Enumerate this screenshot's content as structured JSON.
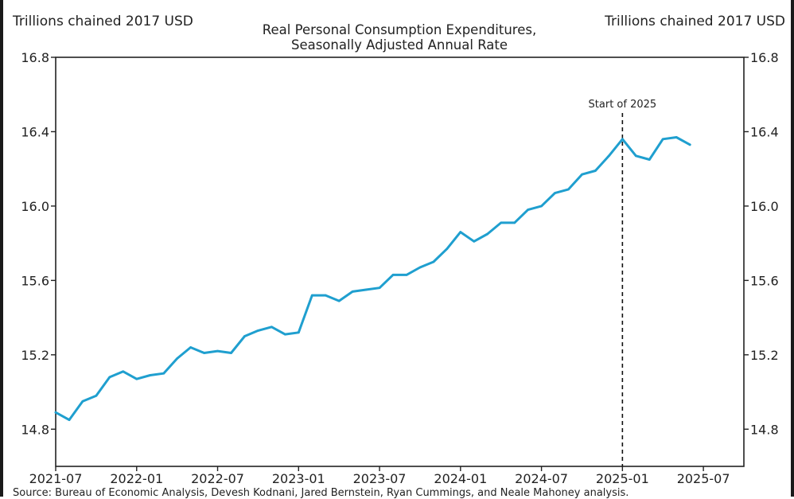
{
  "units": {
    "left": "Trillions chained 2017 USD",
    "right": "Trillions chained 2017 USD"
  },
  "source": "Source: Bureau of Economic Analysis, Devesh Kodnani, Jared Bernstein, Ryan Cummings, and Neale Mahoney analysis.",
  "chart_data": {
    "type": "line",
    "title": "Real Personal Consumption Expenditures,",
    "subtitle": "Seasonally Adjusted Annual Rate",
    "ylabel": "Trillions chained 2017 USD",
    "xlabel": "",
    "ylim": [
      14.6,
      16.8
    ],
    "xlim": [
      "2021-07",
      "2025-10"
    ],
    "yticks": [
      14.8,
      15.2,
      15.6,
      16.0,
      16.4,
      16.8
    ],
    "ytick_labels": [
      "14.8",
      "15.2",
      "15.6",
      "16.0",
      "16.4",
      "16.8"
    ],
    "xticks": [
      "2021-07",
      "2022-01",
      "2022-07",
      "2023-01",
      "2023-07",
      "2024-01",
      "2024-07",
      "2025-01",
      "2025-07"
    ],
    "grid": false,
    "line_color": "#1f9fcf",
    "x": [
      "2021-07",
      "2021-08",
      "2021-09",
      "2021-10",
      "2021-11",
      "2021-12",
      "2022-01",
      "2022-02",
      "2022-03",
      "2022-04",
      "2022-05",
      "2022-06",
      "2022-07",
      "2022-08",
      "2022-09",
      "2022-10",
      "2022-11",
      "2022-12",
      "2023-01",
      "2023-02",
      "2023-03",
      "2023-04",
      "2023-05",
      "2023-06",
      "2023-07",
      "2023-08",
      "2023-09",
      "2023-10",
      "2023-11",
      "2023-12",
      "2024-01",
      "2024-02",
      "2024-03",
      "2024-04",
      "2024-05",
      "2024-06",
      "2024-07",
      "2024-08",
      "2024-09",
      "2024-10",
      "2024-11",
      "2024-12",
      "2025-01",
      "2025-02",
      "2025-03",
      "2025-04",
      "2025-05",
      "2025-06"
    ],
    "series": [
      {
        "values": [
          14.89,
          14.85,
          14.95,
          14.98,
          15.08,
          15.11,
          15.07,
          15.09,
          15.1,
          15.18,
          15.24,
          15.21,
          15.22,
          15.21,
          15.3,
          15.33,
          15.35,
          15.31,
          15.32,
          15.52,
          15.52,
          15.49,
          15.54,
          15.55,
          15.56,
          15.63,
          15.63,
          15.67,
          15.7,
          15.77,
          15.86,
          15.81,
          15.85,
          15.91,
          15.91,
          15.98,
          16.0,
          16.07,
          16.09,
          16.17,
          16.19,
          16.27,
          16.36,
          16.27,
          16.25,
          16.36,
          16.37,
          16.33
        ]
      }
    ],
    "annotations": [
      {
        "x": "2025-01",
        "text": "Start of 2025",
        "style": "dashed-vertical-line"
      }
    ]
  }
}
